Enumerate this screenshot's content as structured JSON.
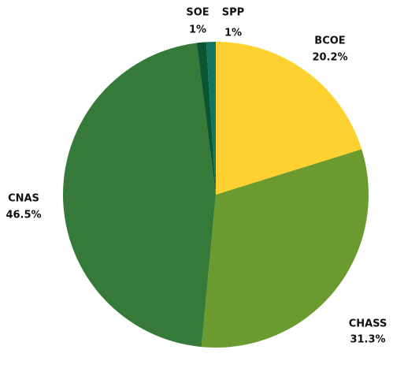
{
  "chart_data": {
    "type": "pie",
    "categories": [
      "BCOE",
      "CHASS",
      "CNAS",
      "SOE",
      "SPP"
    ],
    "values": [
      20.2,
      31.3,
      46.5,
      1,
      1
    ],
    "value_labels": [
      "20.2%",
      "31.3%",
      "46.5%",
      "1%",
      "1%"
    ],
    "colors": [
      "#fdd12f",
      "#6b9b2f",
      "#357a38",
      "#0b5531",
      "#117561"
    ]
  }
}
